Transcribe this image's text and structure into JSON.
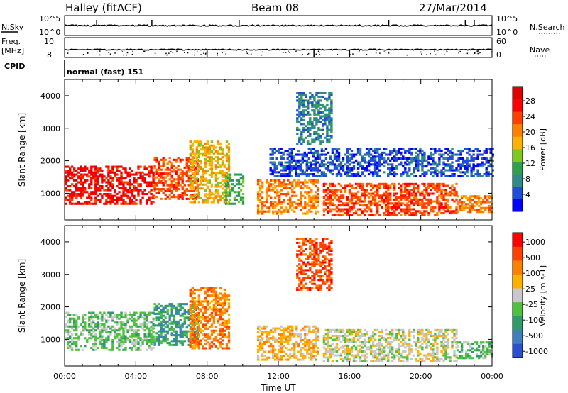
{
  "header": {
    "station": "Halley (fitACF)",
    "beam": "Beam 08",
    "date": "27/Mar/2014"
  },
  "top_panels": {
    "nsky": {
      "left_label": "N.Sky",
      "right_label": "N.Search",
      "left_ticks": [
        "10^5",
        "10^0"
      ],
      "right_ticks": [
        "10^5",
        "10^0"
      ]
    },
    "freq": {
      "left_label_line1": "Freq.",
      "left_label_line2": "[MHz]",
      "left_ticks": [
        "10",
        "8"
      ],
      "right_label": "Nave",
      "right_ticks": [
        "60",
        "0"
      ]
    },
    "cpid": {
      "label": "CPID",
      "mode": "normal (fast) 151"
    }
  },
  "chart_data": [
    {
      "type": "heatmap",
      "name": "power",
      "ylabel": "Slant Range [km]",
      "xlabel": "",
      "y_ticks": [
        1000,
        2000,
        3000,
        4000
      ],
      "ylim": [
        180,
        4500
      ],
      "x_ticks": [
        "00:00",
        "04:00",
        "08:00",
        "12:00",
        "16:00",
        "20:00",
        "00:00"
      ],
      "xlim_hours": [
        0,
        24
      ],
      "colorbar": {
        "label": "Power [dB]",
        "ticks": [
          "4",
          "8",
          "12",
          "16",
          "20",
          "24",
          "28"
        ],
        "colors": [
          "#0000ff",
          "#1f4fd8",
          "#2f8a8a",
          "#2fa050",
          "#7fc820",
          "#ffb000",
          "#ff8000",
          "#ff4000",
          "#ff0000",
          "#e00000"
        ]
      },
      "regions": [
        {
          "t": [
            0.0,
            5.0
          ],
          "r": [
            650,
            1850
          ],
          "level": 8
        },
        {
          "t": [
            5.0,
            7.5
          ],
          "r": [
            800,
            2100
          ],
          "level": 7
        },
        {
          "t": [
            7.0,
            9.2
          ],
          "r": [
            700,
            2600
          ],
          "level": 5
        },
        {
          "t": [
            9.0,
            10.0
          ],
          "r": [
            650,
            1600
          ],
          "level": 3
        },
        {
          "t": [
            10.8,
            14.2
          ],
          "r": [
            350,
            1400
          ],
          "level": 6
        },
        {
          "t": [
            14.5,
            22.0
          ],
          "r": [
            300,
            1300
          ],
          "level": 7
        },
        {
          "t": [
            22.0,
            24.0
          ],
          "r": [
            400,
            900
          ],
          "level": 6
        },
        {
          "t": [
            11.5,
            24.0
          ],
          "r": [
            1500,
            2400
          ],
          "level": 1
        },
        {
          "t": [
            13.0,
            15.0
          ],
          "r": [
            2500,
            4100
          ],
          "level": 2
        }
      ]
    },
    {
      "type": "heatmap",
      "name": "velocity",
      "ylabel": "Slant Range [km]",
      "xlabel": "Time UT",
      "y_ticks": [
        1000,
        2000,
        3000,
        4000
      ],
      "ylim": [
        180,
        4500
      ],
      "x_ticks": [
        "00:00",
        "04:00",
        "08:00",
        "12:00",
        "16:00",
        "20:00",
        "00:00"
      ],
      "xlim_hours": [
        0,
        24
      ],
      "colorbar": {
        "label": "Velocity [m s-1]",
        "ticks": [
          "1000",
          "500",
          "100",
          "25",
          "-25",
          "-100",
          "-500",
          "-1000"
        ],
        "colors": [
          "#2a4fd0",
          "#3f7fc0",
          "#2f9a6a",
          "#50c040",
          "#c8c8c8",
          "#ffb000",
          "#ff8000",
          "#ff4000",
          "#ff0000"
        ]
      },
      "regions": [
        {
          "t": [
            0.0,
            5.0
          ],
          "r": [
            650,
            1850
          ],
          "level": 3
        },
        {
          "t": [
            5.0,
            7.5
          ],
          "r": [
            800,
            2100
          ],
          "level": 2
        },
        {
          "t": [
            7.0,
            9.2
          ],
          "r": [
            700,
            2600
          ],
          "level": 6
        },
        {
          "t": [
            10.8,
            14.2
          ],
          "r": [
            350,
            1400
          ],
          "level": 5
        },
        {
          "t": [
            14.5,
            22.0
          ],
          "r": [
            300,
            1300
          ],
          "level": 4
        },
        {
          "t": [
            22.0,
            24.0
          ],
          "r": [
            400,
            900
          ],
          "level": 3
        },
        {
          "t": [
            13.0,
            15.0
          ],
          "r": [
            2500,
            4100
          ],
          "level": 7
        }
      ]
    }
  ]
}
